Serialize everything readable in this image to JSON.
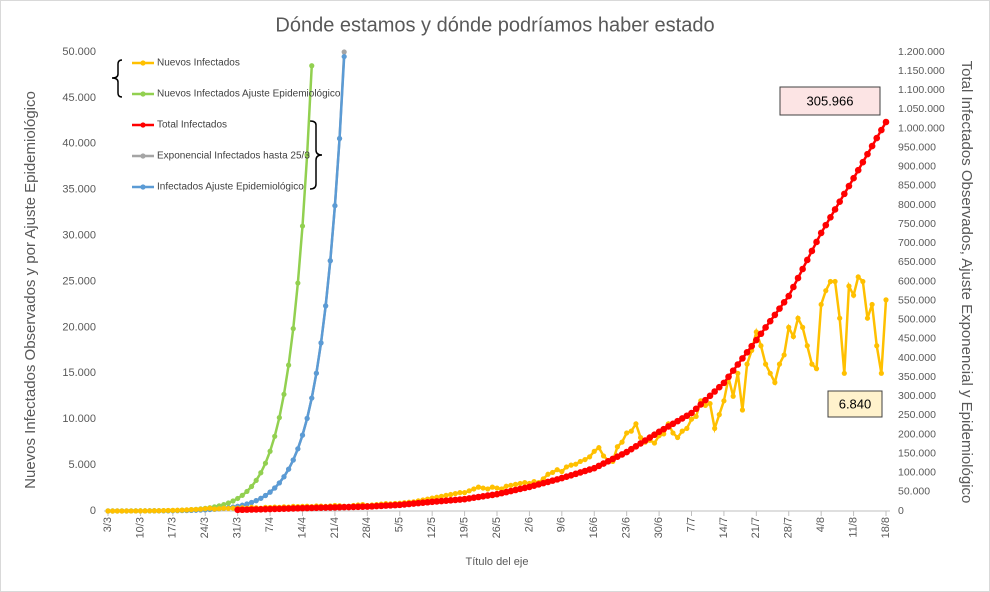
{
  "chart_data": {
    "type": "line",
    "title": "Dónde estamos y dónde podríamos haber estado",
    "x_label": "Título del eje",
    "y_label": "Nuevos Infectados Observados y por Ajuste Epidemiológico",
    "y2_label": "Total Infectados Observados, Ajuste Exponencial y Epidemiológico",
    "categories": [
      "3/3",
      null,
      null,
      null,
      null,
      null,
      null,
      "10/3",
      null,
      null,
      null,
      null,
      null,
      null,
      "17/3",
      null,
      null,
      null,
      null,
      null,
      null,
      "24/3",
      null,
      null,
      null,
      null,
      null,
      null,
      "31/3",
      null,
      null,
      null,
      null,
      null,
      null,
      "7/4",
      null,
      null,
      null,
      null,
      null,
      null,
      "14/4",
      null,
      null,
      null,
      null,
      null,
      null,
      "21/4",
      null,
      null,
      null,
      null,
      null,
      null,
      "28/4",
      null,
      null,
      null,
      null,
      null,
      null,
      "5/5",
      null,
      null,
      null,
      null,
      null,
      null,
      "12/5",
      null,
      null,
      null,
      null,
      null,
      null,
      "19/5",
      null,
      null,
      null,
      null,
      null,
      null,
      "26/5",
      null,
      null,
      null,
      null,
      null,
      null,
      "2/6",
      null,
      null,
      null,
      null,
      null,
      null,
      "9/6",
      null,
      null,
      null,
      null,
      null,
      null,
      "16/6",
      null,
      null,
      null,
      null,
      null,
      null,
      "23/6",
      null,
      null,
      null,
      null,
      null,
      null,
      "30/6",
      null,
      null,
      null,
      null,
      null,
      null,
      "7/7",
      null,
      null,
      null,
      null,
      null,
      null,
      "14/7",
      null,
      null,
      null,
      null,
      null,
      null,
      "21/7",
      null,
      null,
      null,
      null,
      null,
      null,
      "28/7",
      null,
      null,
      null,
      null,
      null,
      null,
      "4/8",
      null,
      null,
      null,
      null,
      null,
      null,
      "11/8",
      null,
      null,
      null,
      null,
      null,
      null,
      "18/8"
    ],
    "series": [
      {
        "name": "Nuevos Infectados",
        "color": "#FFC000",
        "values": [
          0,
          0,
          0,
          2,
          3,
          5,
          7,
          10,
          13,
          18,
          25,
          30,
          45,
          60,
          75,
          80,
          100,
          120,
          150,
          170,
          200,
          250,
          300,
          220,
          250,
          300,
          280,
          310,
          300,
          350,
          300,
          400,
          350,
          300,
          400,
          380,
          420,
          400,
          450,
          430,
          500,
          480,
          500,
          520,
          480,
          550,
          530,
          500,
          550,
          600,
          580,
          520,
          500,
          600,
          650,
          700,
          600,
          650,
          700,
          750,
          800,
          780,
          820,
          850,
          900,
          950,
          1000,
          1100,
          1200,
          1300,
          1400,
          1500,
          1600,
          1700,
          1800,
          1900,
          2000,
          2000,
          2200,
          2400,
          2600,
          2500,
          2400,
          2600,
          2500,
          2400,
          2700,
          2800,
          2900,
          3000,
          3100,
          3000,
          3200,
          3100,
          3500,
          4000,
          4200,
          4500,
          4300,
          4800,
          5000,
          5100,
          5400,
          5600,
          5900,
          6500,
          6900,
          6000,
          5500,
          5400,
          7000,
          7500,
          8500,
          8700,
          9500,
          8000,
          7500,
          7700,
          7400,
          8200,
          8400,
          9500,
          8500,
          8000,
          8700,
          9000,
          10000,
          10300,
          12000,
          11500,
          11700,
          9000,
          10500,
          12000,
          14500,
          12500,
          15000,
          11000,
          16000,
          17500,
          19500,
          18000,
          16000,
          15000,
          14000,
          16000,
          17000,
          20000,
          19000,
          21000,
          20000,
          18000,
          16000,
          15500,
          22500,
          24000,
          25000,
          25000,
          21000,
          15000,
          24500,
          23500,
          25500,
          25000,
          21000,
          22500,
          18000,
          15000,
          23000
        ]
      },
      {
        "name": "Nuevos Infectados Ajuste Epidemiológico",
        "color": "#92D050",
        "values": [
          3,
          3,
          4,
          5,
          7,
          8,
          10,
          13,
          16,
          20,
          25,
          31,
          38,
          48,
          60,
          75,
          94,
          117,
          147,
          183,
          229,
          286,
          358,
          447,
          559,
          699,
          874,
          1092,
          1365,
          1706,
          2133,
          2666,
          3333,
          4166,
          5208,
          6510,
          8137,
          10171,
          12714,
          15893,
          19866,
          24832,
          31040,
          38800,
          48500,
          null,
          null,
          null,
          null,
          null,
          null,
          null,
          null,
          null,
          null,
          null,
          null,
          null,
          null,
          null,
          null,
          null,
          null,
          null,
          null,
          null,
          null,
          null,
          null,
          null,
          null,
          null,
          null,
          null,
          null,
          null,
          null,
          null,
          null,
          null,
          null,
          null,
          null,
          null,
          null,
          null,
          null,
          null,
          null,
          null,
          null,
          null,
          null,
          null,
          null,
          null,
          null,
          null,
          null,
          null,
          null,
          null,
          null,
          null,
          null,
          null,
          null,
          null,
          null,
          null,
          null,
          null,
          null,
          null,
          null,
          null,
          null,
          null,
          null,
          null,
          null,
          null,
          null,
          null,
          null,
          null,
          null,
          null,
          null,
          null,
          null,
          null,
          null,
          null,
          null,
          null,
          null,
          null,
          null,
          null,
          null,
          null,
          null,
          null,
          null,
          null,
          null,
          null,
          null,
          null,
          null,
          null,
          null,
          null,
          null,
          null,
          null,
          null,
          null,
          null,
          null,
          null,
          null,
          null,
          null,
          null,
          null,
          null,
          null
        ]
      },
      {
        "name": "Total Infectados",
        "color": "#FF0000",
        "axis": "y2",
        "values": [
          null,
          null,
          null,
          null,
          null,
          null,
          null,
          null,
          null,
          null,
          null,
          null,
          null,
          null,
          null,
          null,
          null,
          null,
          null,
          null,
          null,
          null,
          null,
          null,
          null,
          null,
          null,
          null,
          3000,
          3300,
          3600,
          3900,
          4100,
          4400,
          4700,
          5000,
          5400,
          5700,
          6100,
          6400,
          6800,
          7100,
          7500,
          7800,
          8100,
          8400,
          8600,
          8900,
          9200,
          9500,
          9800,
          10100,
          10400,
          10600,
          10900,
          11200,
          11500,
          12100,
          12800,
          13400,
          14100,
          14700,
          15400,
          16000,
          17100,
          18300,
          19400,
          20600,
          21700,
          22900,
          24000,
          25000,
          26000,
          27000,
          28000,
          29000,
          30000,
          31000,
          32900,
          34700,
          36600,
          38400,
          40300,
          42100,
          44000,
          46700,
          49400,
          52100,
          54900,
          57600,
          60300,
          63000,
          66300,
          69600,
          72900,
          76100,
          79400,
          82700,
          86000,
          89700,
          93400,
          97100,
          100900,
          104600,
          108300,
          112000,
          118000,
          124000,
          130000,
          136000,
          142000,
          148000,
          154000,
          161600,
          169100,
          176700,
          184300,
          191900,
          199400,
          207000,
          214000,
          221000,
          228000,
          235000,
          242000,
          249000,
          256000,
          267300,
          278600,
          289900,
          301100,
          312400,
          323700,
          335000,
          351000,
          367000,
          383000,
          399000,
          415000,
          431000,
          447000,
          463400,
          479900,
          496300,
          512700,
          529100,
          545600,
          562000,
          585600,
          609100,
          632700,
          656300,
          679900,
          703400,
          727000,
          747400,
          767900,
          788300,
          808700,
          829100,
          849600,
          870000,
          891000,
          912000,
          933000,
          954000,
          975000,
          996000,
          1017000
        ]
      },
      {
        "name": "Exponencial Infectados hasta 25/3",
        "color": "#A5A5A5",
        "values": [
          2,
          2,
          3,
          3,
          4,
          5,
          6,
          8,
          9,
          11,
          14,
          17,
          21,
          26,
          31,
          38,
          47,
          57,
          70,
          85,
          104,
          127,
          155,
          189,
          231,
          281,
          343,
          419,
          511,
          623,
          760,
          928,
          1132,
          1381,
          1685,
          2055,
          2507,
          3059,
          3732,
          4553,
          5554,
          6776,
          8267,
          10086,
          12305,
          15012,
          18315,
          22344,
          27260,
          33257,
          40574,
          50000,
          null,
          null,
          null,
          null,
          null,
          null,
          null,
          null,
          null,
          null,
          null,
          null,
          null,
          null,
          null,
          null,
          null,
          null,
          null,
          null,
          null,
          null,
          null,
          null,
          null,
          null,
          null,
          null,
          null,
          null,
          null,
          null,
          null,
          null,
          null,
          null,
          null,
          null,
          null,
          null,
          null,
          null,
          null,
          null,
          null,
          null,
          null,
          null,
          null,
          null,
          null,
          null,
          null,
          null,
          null,
          null,
          null,
          null,
          null,
          null,
          null,
          null,
          null,
          null,
          null,
          null,
          null,
          null,
          null,
          null,
          null,
          null,
          null,
          null,
          null,
          null,
          null,
          null,
          null,
          null,
          null,
          null,
          null,
          null,
          null,
          null,
          null,
          null,
          null,
          null,
          null,
          null,
          null,
          null,
          null,
          null,
          null,
          null,
          null,
          null,
          null,
          null,
          null,
          null,
          null,
          null,
          null,
          null,
          null,
          null,
          null,
          null,
          null,
          null,
          null,
          null,
          null
        ]
      },
      {
        "name": "Infectados Ajuste Epidemiológico",
        "color": "#5B9BD5",
        "values": [
          2,
          2,
          3,
          3,
          4,
          5,
          6,
          8,
          9,
          11,
          14,
          17,
          21,
          26,
          31,
          38,
          47,
          57,
          70,
          85,
          104,
          127,
          155,
          189,
          231,
          281,
          343,
          419,
          511,
          623,
          760,
          928,
          1132,
          1381,
          1685,
          2055,
          2507,
          3059,
          3732,
          4553,
          5554,
          6776,
          8267,
          10086,
          12305,
          15012,
          18315,
          22344,
          27260,
          33257,
          40574,
          49500,
          null,
          null,
          null,
          null,
          null,
          null,
          null,
          null,
          null,
          null,
          null,
          null,
          null,
          null,
          null,
          null,
          null,
          null,
          null,
          null,
          null,
          null,
          null,
          null,
          null,
          null,
          null,
          null,
          null,
          null,
          null,
          null,
          null,
          null,
          null,
          null,
          null,
          null,
          null,
          null,
          null,
          null,
          null,
          null,
          null,
          null,
          null,
          null,
          null,
          null,
          null,
          null,
          null,
          null,
          null,
          null,
          null,
          null,
          null,
          null,
          null,
          null,
          null,
          null,
          null,
          null,
          null,
          null,
          null,
          null,
          null,
          null,
          null,
          null,
          null,
          null,
          null,
          null,
          null,
          null,
          null,
          null,
          null,
          null,
          null,
          null,
          null,
          null,
          null,
          null,
          null,
          null,
          null,
          null,
          null,
          null,
          null,
          null,
          null,
          null,
          null,
          null,
          null,
          null,
          null,
          null,
          null,
          null,
          null,
          null,
          null,
          null,
          null,
          null,
          null,
          null,
          null
        ]
      }
    ],
    "ylim": [
      0,
      50000
    ],
    "yticks": [
      0,
      {
        "value": 5000,
        "label": "5.000"
      },
      {
        "value": 10000,
        "label": "10.000"
      },
      {
        "value": 15000,
        "label": "15.000"
      },
      {
        "value": 20000,
        "label": "20.000"
      },
      {
        "value": 25000,
        "label": "25.000"
      },
      {
        "value": 30000,
        "label": "30.000"
      },
      {
        "value": 35000,
        "label": "35.000"
      },
      {
        "value": 40000,
        "label": "40.000"
      },
      {
        "value": 45000,
        "label": "45.000"
      },
      {
        "value": 50000,
        "label": "50.000"
      }
    ],
    "y2lim": [
      0,
      1200000
    ],
    "y2ticks": [
      0,
      {
        "value": 50000,
        "label": "50.000"
      },
      {
        "value": 100000,
        "label": "100.000"
      },
      {
        "value": 150000,
        "label": "150.000"
      },
      {
        "value": 200000,
        "label": "200.000"
      },
      {
        "value": 250000,
        "label": "250.000"
      },
      {
        "value": 300000,
        "label": "300.000"
      },
      {
        "value": 350000,
        "label": "350.000"
      },
      {
        "value": 400000,
        "label": "400.000"
      },
      {
        "value": 450000,
        "label": "450.000"
      },
      {
        "value": 500000,
        "label": "500.000"
      },
      {
        "value": 550000,
        "label": "550.000"
      },
      {
        "value": 600000,
        "label": "600.000"
      },
      {
        "value": 650000,
        "label": "650.000"
      },
      {
        "value": 700000,
        "label": "700.000"
      },
      {
        "value": 750000,
        "label": "750.000"
      },
      {
        "value": 800000,
        "label": "800.000"
      },
      {
        "value": 850000,
        "label": "850.000"
      },
      {
        "value": 900000,
        "label": "900.000"
      },
      {
        "value": 950000,
        "label": "950.000"
      },
      {
        "value": 1000000,
        "label": "1.000.000"
      },
      {
        "value": 1050000,
        "label": "1.050.000"
      },
      {
        "value": 1100000,
        "label": "1.100.000"
      },
      {
        "value": 1150000,
        "label": "1.150.000"
      },
      {
        "value": 1200000,
        "label": "1.200.000"
      }
    ],
    "grid": false,
    "annotations": [
      {
        "text": "305.966",
        "background": "#FCE4E4"
      },
      {
        "text": "6.840",
        "background": "#FFF2CC"
      }
    ]
  }
}
